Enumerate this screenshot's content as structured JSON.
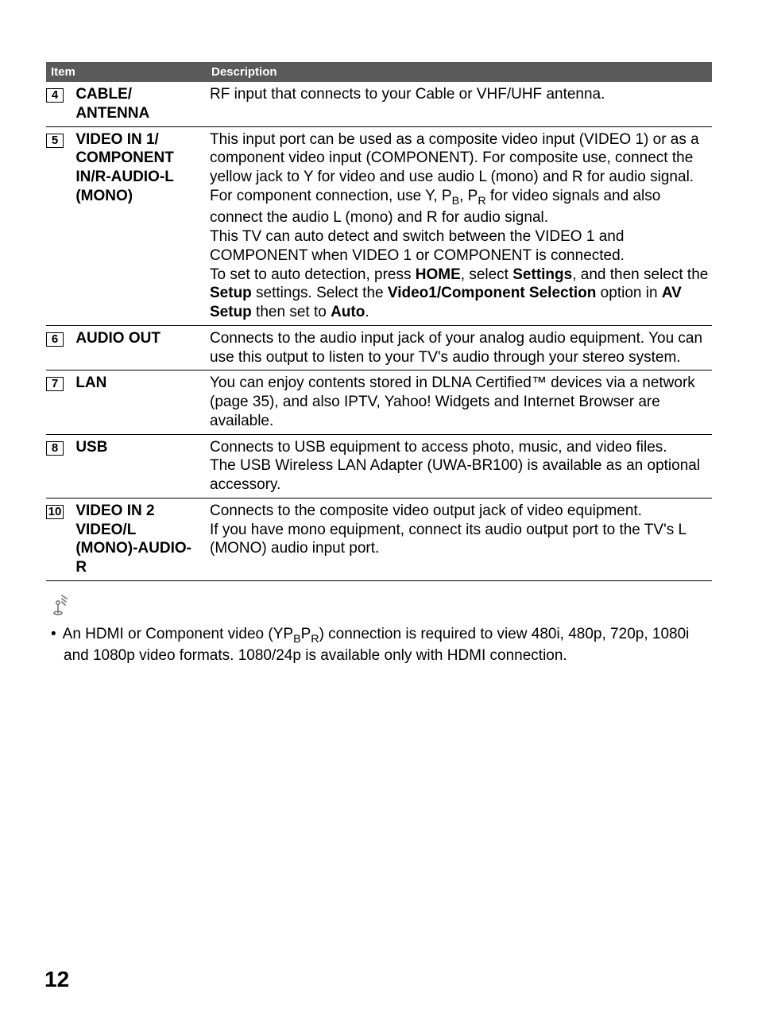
{
  "table": {
    "header": {
      "item": "Item",
      "description": "Description"
    },
    "rows": [
      {
        "num": "4",
        "name": "CABLE/\nANTENNA",
        "desc_html": "RF input that connects to your Cable or VHF/UHF antenna."
      },
      {
        "num": "5",
        "name": "VIDEO IN 1/\nCOMPONENT IN/R-AUDIO-L (MONO)",
        "desc_html": "This input port can be used as a composite video input (VIDEO 1) or as a component video input (COMPONENT). For composite use, connect the yellow jack to Y for video and use audio L (mono) and R for audio signal. For component connection, use Y, P<span class=\"sub\">B</span>, P<span class=\"sub\">R</span> for video signals and also connect the audio L (mono) and R for audio signal.<br>This TV can auto detect and switch between the VIDEO 1 and COMPONENT when VIDEO 1 or COMPONENT is connected.<br>To set to auto detection, press <b>HOME</b>, select <b>Settings</b>, and then select the <b>Setup</b> settings. Select the <b>Video1/Component Selection</b> option in <b>AV Setup</b> then set to <b>Auto</b>."
      },
      {
        "num": "6",
        "name": "AUDIO OUT",
        "desc_html": "Connects to the audio input jack of your analog audio equipment. You can use this output to listen to your TV's audio through your stereo system."
      },
      {
        "num": "7",
        "name": "LAN",
        "desc_html": "You can enjoy contents stored in DLNA Certified™ devices via a network (page 35), and also IPTV, Yahoo! Widgets and Internet Browser are available."
      },
      {
        "num": "8",
        "name": "USB",
        "desc_html": "Connects to USB equipment to access photo, music, and video files.<br>The USB Wireless LAN Adapter (UWA-BR100) is available as an optional accessory."
      },
      {
        "num": "10",
        "name": "VIDEO IN 2\nVIDEO/L (MONO)-AUDIO-R",
        "desc_html": "Connects to the composite video output jack of video equipment.<br>If you have mono equipment, connect its audio output port to the TV's L (MONO) audio input port."
      }
    ]
  },
  "note_html": "An HDMI or Component video (YP<span class=\"sub\">B</span>P<span class=\"sub\">R</span>) connection is required to view 480i, 480p, 720p, 1080i and 1080p video formats. 1080/24p is available only with HDMI connection.",
  "page_number": "12"
}
